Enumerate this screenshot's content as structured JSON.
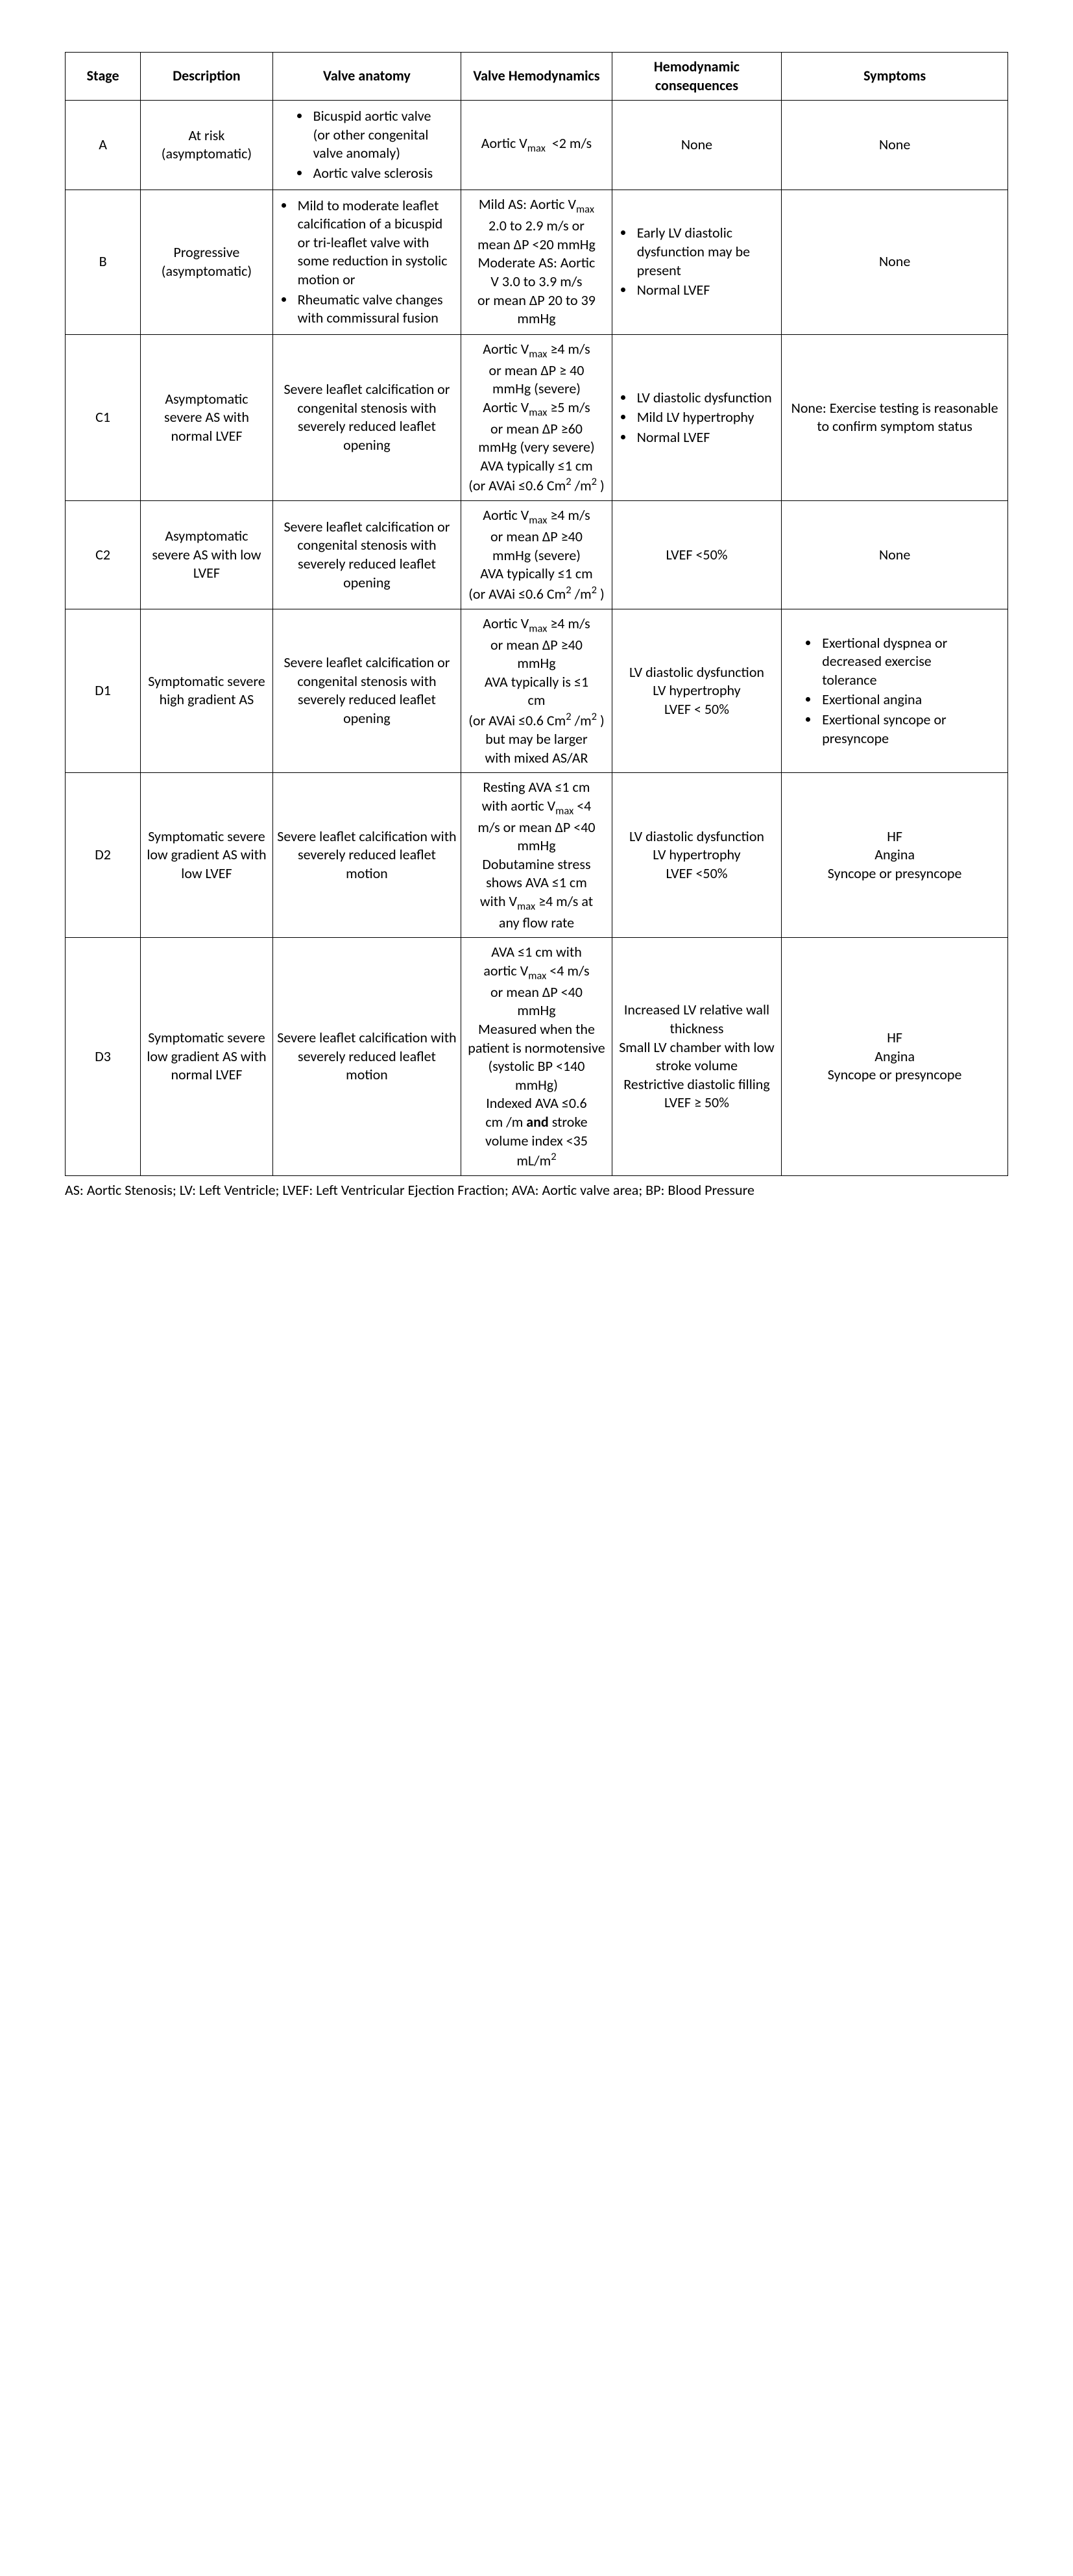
{
  "headers": {
    "stage": "Stage",
    "description": "Description",
    "anatomy": "Valve anatomy",
    "hemodynamics": "Valve Hemodynamics",
    "consequences": "Hemodynamic consequences",
    "symptoms": "Symptoms"
  },
  "rows": {
    "A": {
      "stage": "A",
      "description": "At risk (asymptomatic)",
      "anatomy_items": [
        "Bicuspid aortic valve (or other congenital valve anomaly)",
        "Aortic valve sclerosis"
      ],
      "hemodynamics_html": "Aortic V<sub>max</sub>&nbsp;&nbsp;&lt;2 m/s",
      "consequences": "None",
      "symptoms": "None"
    },
    "B": {
      "stage": "B",
      "description": "Progressive (asymptomatic)",
      "anatomy_items": [
        "Mild to moderate leaflet calcification of a bicuspid or tri-leaflet valve with some reduction in systolic motion or",
        "Rheumatic valve changes with commissural fusion"
      ],
      "hemodynamics_html": "Mild AS: Aortic V<sub>max</sub><br>2.0 to 2.9 m/s or<br>mean ΔP &lt;20 mmHg<br>Moderate AS: Aortic<br>V 3.0 to 3.9 m/s<br>or mean ΔP 20 to 39<br>mmHg",
      "consequences_items": [
        "Early LV diastolic dysfunction may be present",
        "Normal LVEF"
      ],
      "symptoms": "None"
    },
    "C1": {
      "stage": "C1",
      "description": "Asymptomatic severe AS with normal LVEF",
      "anatomy": "Severe leaflet calcification or congenital stenosis with severely reduced leaflet opening",
      "hemodynamics_html": "Aortic V<sub>max</sub> ≥4 m/s<br>or mean ΔP ≥ 40<br>mmHg (severe)<br>Aortic V<sub>max</sub> ≥5 m/s<br>or mean ΔP ≥60<br>mmHg (very severe) AVA typically ≤1 cm<br>(or AVAi ≤0.6 Cm<sup>2</sup> /m<sup>2</sup> )",
      "consequences_items": [
        "LV diastolic dysfunction",
        "Mild LV hypertrophy",
        "Normal LVEF"
      ],
      "symptoms": "None: Exercise testing is reasonable to confirm symptom status"
    },
    "C2": {
      "stage": "C2",
      "description_html": "Asymptomatic severe AS with low<br>LVEF",
      "anatomy": "Severe leaflet calcification or congenital stenosis with severely reduced leaflet opening",
      "hemodynamics_html": "Aortic V<sub>max</sub> ≥4 m/s<br>or mean ΔP ≥40<br>mmHg (severe)<br>AVA typically ≤1 cm<br>(or AVAi ≤0.6 Cm<sup>2</sup> /m<sup>2</sup> )",
      "consequences": "LVEF <50%",
      "symptoms": "None"
    },
    "D1": {
      "stage": "D1",
      "description_html": "Symptomatic severe<br>high gradient AS",
      "anatomy": "Severe leaflet calcification or congenital stenosis with severely reduced leaflet opening",
      "hemodynamics_html": "Aortic V<sub>max</sub> ≥4 m/s<br>or mean ΔP ≥40<br>mmHg<br>AVA typically is ≤1<br>cm<br>(or AVAi ≤0.6 Cm<sup>2</sup> /m<sup>2</sup> )<br>but may be larger<br>with mixed AS/AR",
      "consequences_html": "LV diastolic dysfunction<br>LV hypertrophy<br>LVEF &lt; 50%",
      "symptoms_items": [
        "Exertional dyspnea or decreased exercise tolerance",
        "Exertional angina",
        "Exertional syncope or presyncope"
      ]
    },
    "D2": {
      "stage": "D2",
      "description_html": "Symptomatic severe<br>low gradient AS with<br>low LVEF",
      "anatomy": "Severe leaflet calcification with severely reduced leaflet motion",
      "hemodynamics_html": "Resting AVA ≤1 cm<br>with aortic V<sub>max</sub> &lt;4<br>m/s or mean ΔP &lt;40<br>mmHg<br>Dobutamine stress<br>shows AVA ≤1 cm<br>with V<sub>max</sub> ≥4 m/s at<br>any flow rate",
      "consequences_html": "LV diastolic dysfunction<br>LV hypertrophy<br>LVEF &lt;50%",
      "symptoms_html": "HF<br>Angina<br>Syncope or presyncope"
    },
    "D3": {
      "stage": "D3",
      "description_html": "Symptomatic severe<br>low gradient AS with<br>normal LVEF",
      "anatomy": "Severe leaflet calcification with severely reduced leaflet motion",
      "hemodynamics_html": "AVA ≤1 cm with<br>aortic V<sub>max</sub> &lt;4 m/s<br>or mean ΔP &lt;40<br>mmHg<br>Measured when the<br>patient is normotensive (systolic BP &lt;140<br>mmHg)<br>Indexed AVA ≤0.6<br>cm /m <b>and</b> stroke<br>volume index &lt;35<br>mL/m<sup>2</sup>",
      "consequences_html": "Increased LV relative wall thickness<br>Small LV chamber with low stroke volume<br>Restrictive diastolic filling<br>LVEF ≥ 50%",
      "symptoms_html": "HF<br>Angina<br>Syncope or presyncope"
    }
  },
  "footnote": "AS: Aortic Stenosis; LV: Left Ventricle; LVEF: Left Ventricular Ejection Fraction; AVA: Aortic valve area; BP: Blood Pressure"
}
